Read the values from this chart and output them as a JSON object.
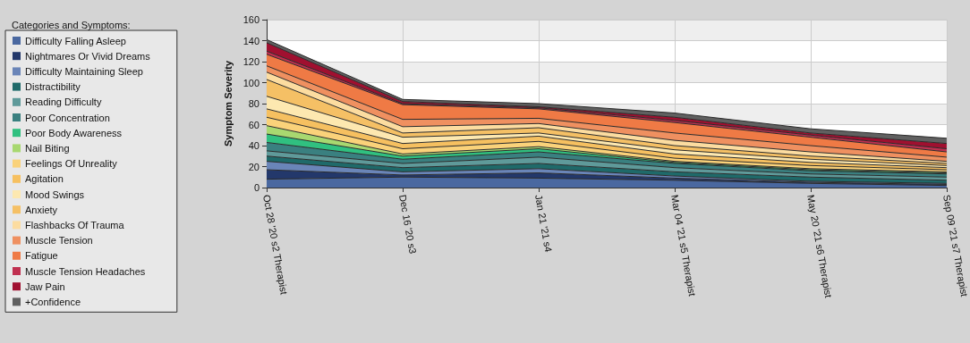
{
  "chart_data": {
    "type": "area",
    "stacked": true,
    "ylabel": "Symptom Severity",
    "legend_title": "Categories and Symptoms:",
    "legend": "left",
    "grid": true,
    "marker": "none",
    "categories": [
      "Oct 28 '20 s2 Therapist",
      "Dec 16 '20 s3",
      "Jan 21 '21 s4",
      "Mar 04 '21 s5 Therapist",
      "May 20 '21 s6 Therapist",
      "Sep 09 '21 s7 Therapist"
    ],
    "ylim": [
      0,
      160
    ],
    "yticks": [
      0,
      20,
      40,
      60,
      80,
      100,
      120,
      140,
      160
    ],
    "series": [
      {
        "name": "Difficulty Falling Asleep",
        "color": "#4a68a0",
        "values": [
          8,
          10,
          9,
          7,
          4,
          2
        ]
      },
      {
        "name": "Nightmares Or Vivid Dreams",
        "color": "#23386b",
        "values": [
          9,
          2,
          5,
          2,
          1,
          1
        ]
      },
      {
        "name": "Difficulty Maintaining Sleep",
        "color": "#6a85b8",
        "values": [
          8,
          3,
          4,
          2,
          1,
          1
        ]
      },
      {
        "name": "Distractibility",
        "color": "#1f6a6a",
        "values": [
          5,
          4,
          5,
          4,
          4,
          3
        ]
      },
      {
        "name": "Reading Difficulty",
        "color": "#5f9a9a",
        "values": [
          5,
          4,
          6,
          4,
          3,
          3
        ]
      },
      {
        "name": "Poor Concentration",
        "color": "#3a8080",
        "values": [
          8,
          4,
          5,
          4,
          3,
          3
        ]
      },
      {
        "name": "Poor Body Awareness",
        "color": "#30c080",
        "values": [
          8,
          3,
          3,
          1,
          1,
          1
        ]
      },
      {
        "name": "Nail Biting",
        "color": "#a8d870",
        "values": [
          8,
          2,
          2,
          1,
          1,
          1
        ]
      },
      {
        "name": "Feelings Of Unreality",
        "color": "#fad27a",
        "values": [
          8,
          5,
          5,
          3,
          3,
          2
        ]
      },
      {
        "name": "Agitation",
        "color": "#f6c060",
        "values": [
          8,
          5,
          5,
          4,
          3,
          2
        ]
      },
      {
        "name": "Mood Swings",
        "color": "#fde8b0",
        "values": [
          12,
          6,
          3,
          4,
          3,
          2
        ]
      },
      {
        "name": "Anxiety",
        "color": "#f5c065",
        "values": [
          16,
          4,
          5,
          4,
          3,
          2
        ]
      },
      {
        "name": "Flashbacks Of Trauma",
        "color": "#fcdca0",
        "values": [
          7,
          6,
          4,
          5,
          4,
          2
        ]
      },
      {
        "name": "Muscle Tension",
        "color": "#ef9060",
        "values": [
          6,
          7,
          5,
          7,
          6,
          4
        ]
      },
      {
        "name": "Fatigue",
        "color": "#ef7a45",
        "values": [
          11,
          14,
          9,
          10,
          8,
          5
        ]
      },
      {
        "name": "Muscle Tension Headaches",
        "color": "#c03050",
        "values": [
          3,
          1,
          1,
          2,
          2,
          3
        ]
      },
      {
        "name": "Jaw Pain",
        "color": "#a01030",
        "values": [
          8,
          2,
          1,
          3,
          2,
          5
        ]
      },
      {
        "name": "+Confidence",
        "color": "#606060",
        "values": [
          3,
          2,
          3,
          4,
          4,
          5
        ]
      }
    ]
  }
}
